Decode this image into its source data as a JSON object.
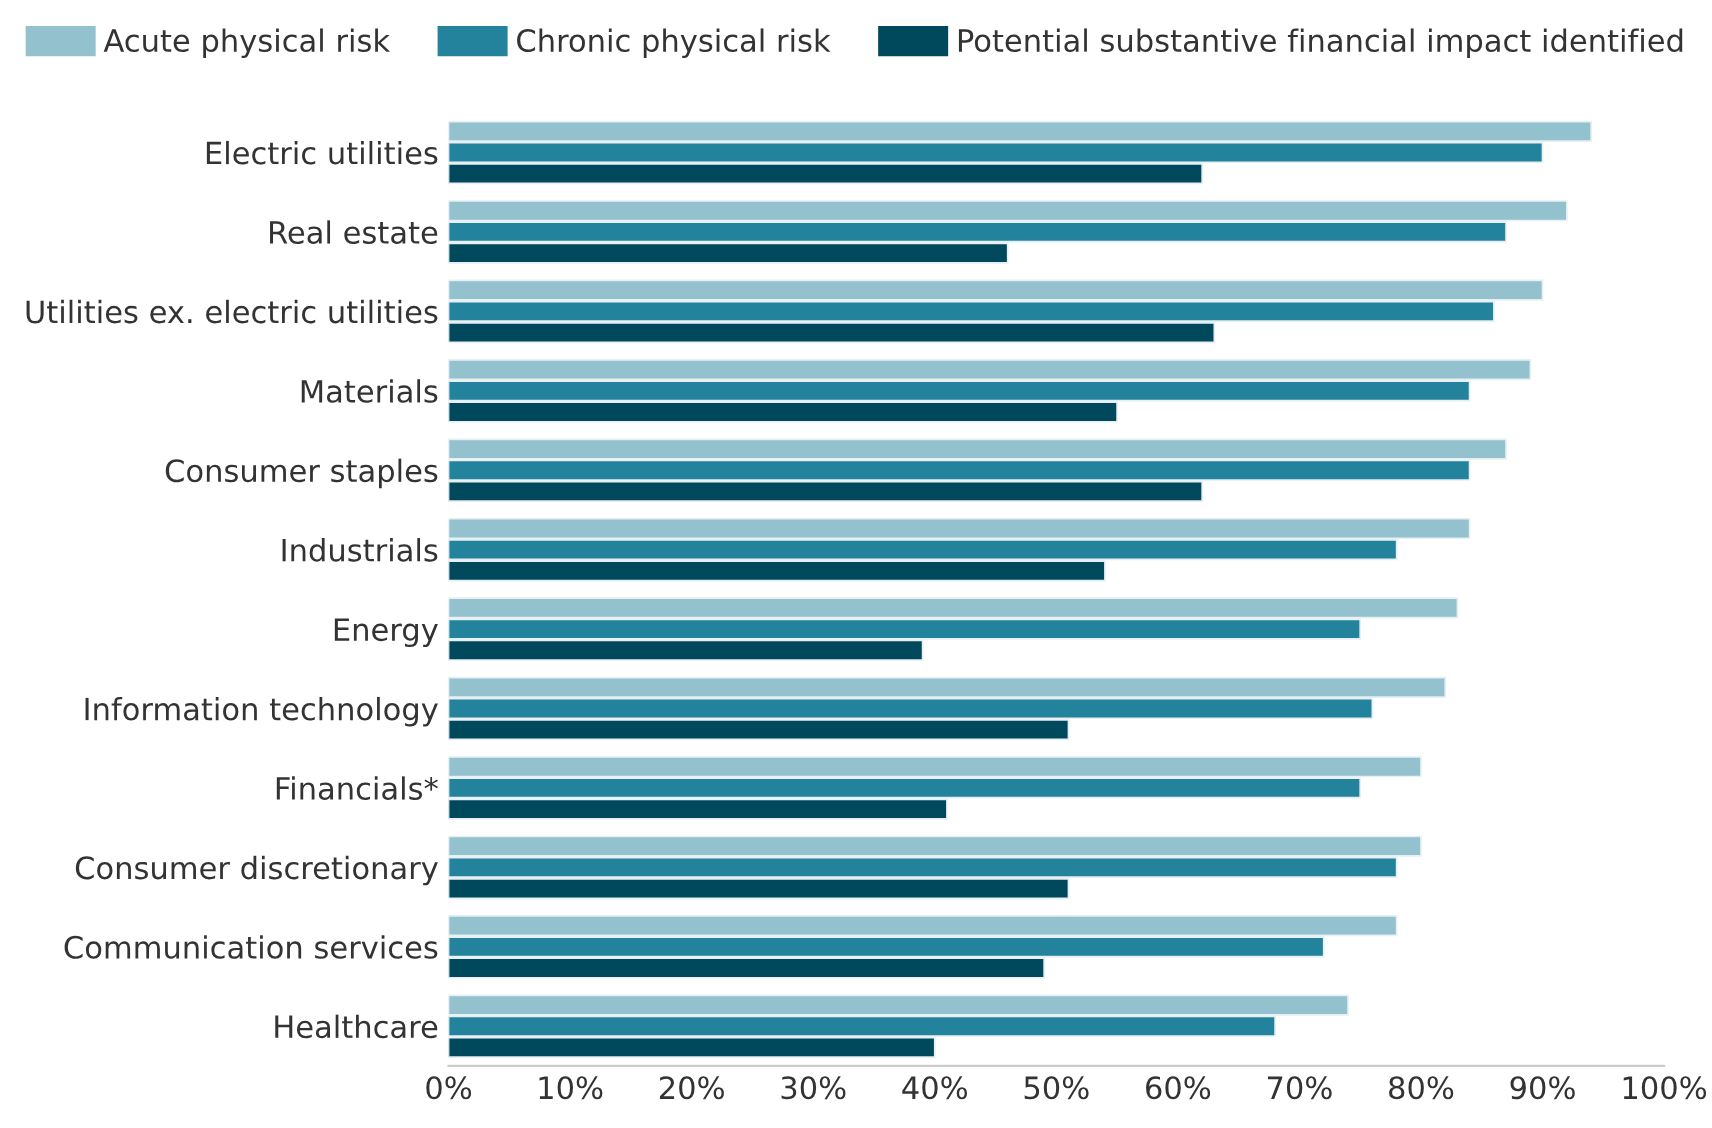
{
  "chart_data": {
    "type": "bar",
    "orientation": "horizontal",
    "categories": [
      "Electric utilities",
      "Real estate",
      "Utilities ex. electric utilities",
      "Materials",
      "Consumer staples",
      "Industrials",
      "Energy",
      "Information technology",
      "Financials*",
      "Consumer discretionary",
      "Communication services",
      "Healthcare"
    ],
    "series": [
      {
        "name": "Acute physical risk",
        "color": "#93c1cd",
        "values": [
          94,
          92,
          90,
          89,
          87,
          84,
          83,
          82,
          80,
          80,
          78,
          74
        ]
      },
      {
        "name": "Chronic physical risk",
        "color": "#24839c",
        "values": [
          90,
          87,
          86,
          84,
          84,
          78,
          75,
          76,
          75,
          78,
          72,
          68
        ]
      },
      {
        "name": "Potential substantive financial impact identified",
        "color": "#00495c",
        "values": [
          62,
          46,
          63,
          55,
          62,
          54,
          39,
          51,
          41,
          51,
          49,
          40
        ]
      }
    ],
    "xlim": [
      0,
      100
    ],
    "xticks": [
      {
        "value": 0,
        "label": "0%"
      },
      {
        "value": 10,
        "label": "10%"
      },
      {
        "value": 20,
        "label": "20%"
      },
      {
        "value": 30,
        "label": "30%"
      },
      {
        "value": 40,
        "label": "40%"
      },
      {
        "value": 50,
        "label": "50%"
      },
      {
        "value": 60,
        "label": "60%"
      },
      {
        "value": 70,
        "label": "70%"
      },
      {
        "value": 80,
        "label": "80%"
      },
      {
        "value": 90,
        "label": "90%"
      },
      {
        "value": 100,
        "label": "100%"
      }
    ],
    "grid": false,
    "legend": "top"
  }
}
